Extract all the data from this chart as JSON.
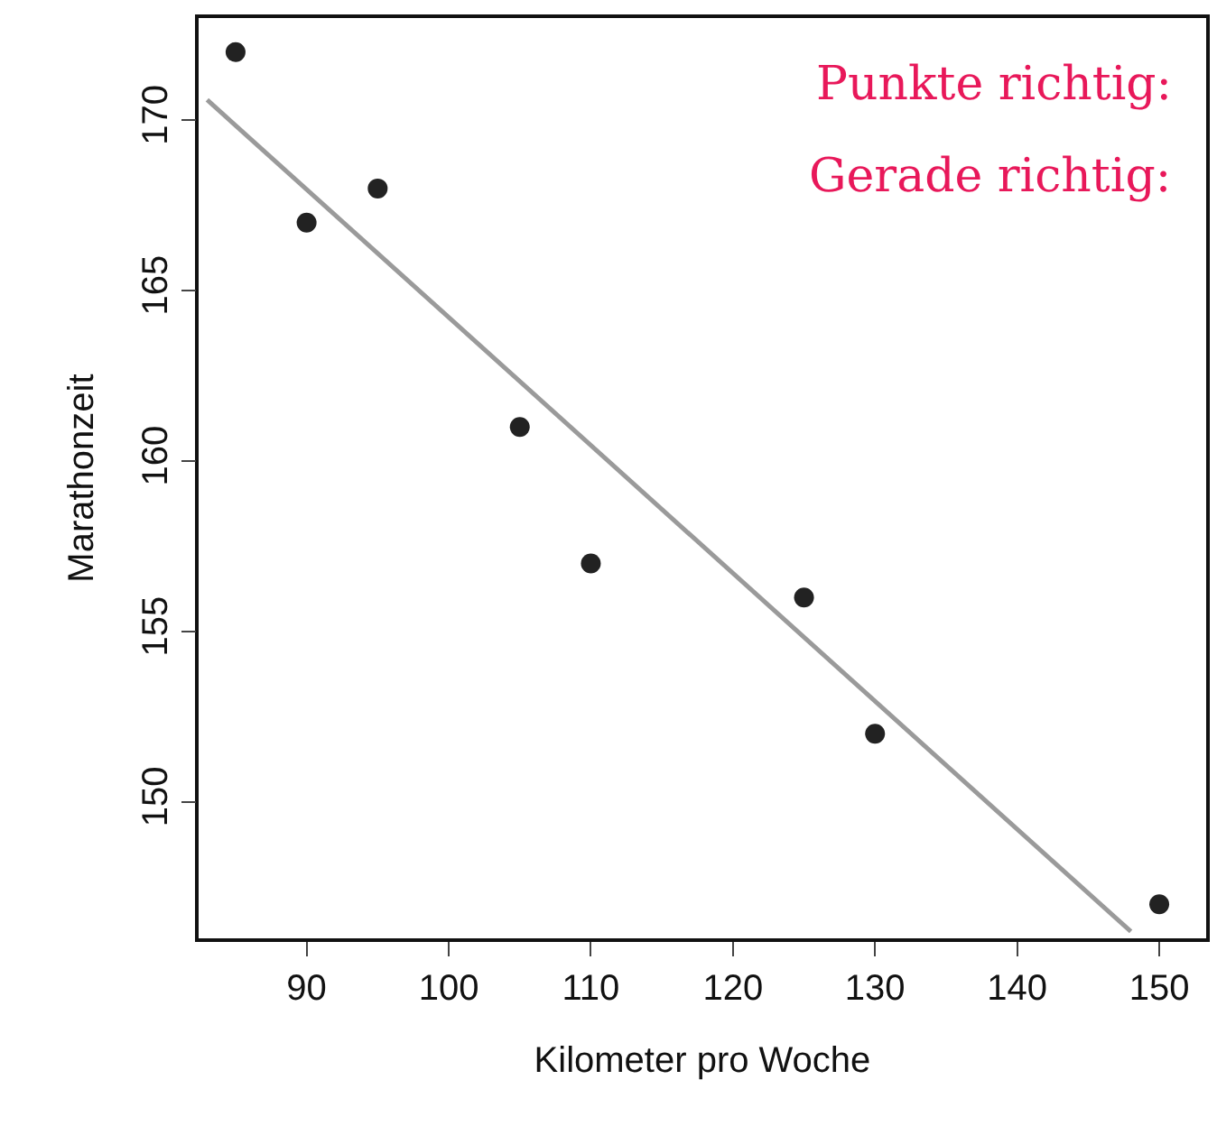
{
  "chart_data": {
    "type": "scatter",
    "xlabel": "Kilometer pro Woche",
    "ylabel": "Marathonzeit",
    "x": [
      85,
      90,
      95,
      105,
      110,
      125,
      130,
      150
    ],
    "series": [
      {
        "type": "scatter",
        "color": "#222222",
        "marker": "circle",
        "values": [
          172,
          167,
          168,
          161,
          157,
          156,
          152,
          147
        ]
      },
      {
        "type": "line",
        "color": "#9a9a9a",
        "x": [
          83,
          148
        ],
        "values": [
          170.6,
          146.2
        ],
        "marker": "none",
        "line_style": "solid"
      }
    ],
    "xlim": [
      82.4,
      153.3
    ],
    "ylim": [
      146,
      173
    ],
    "xticks": [
      90,
      100,
      110,
      120,
      130,
      140,
      150
    ],
    "yticks": [
      150,
      155,
      160,
      165,
      170
    ],
    "annotations": [
      "Punkte richtig:",
      "Gerade richtig:"
    ]
  }
}
